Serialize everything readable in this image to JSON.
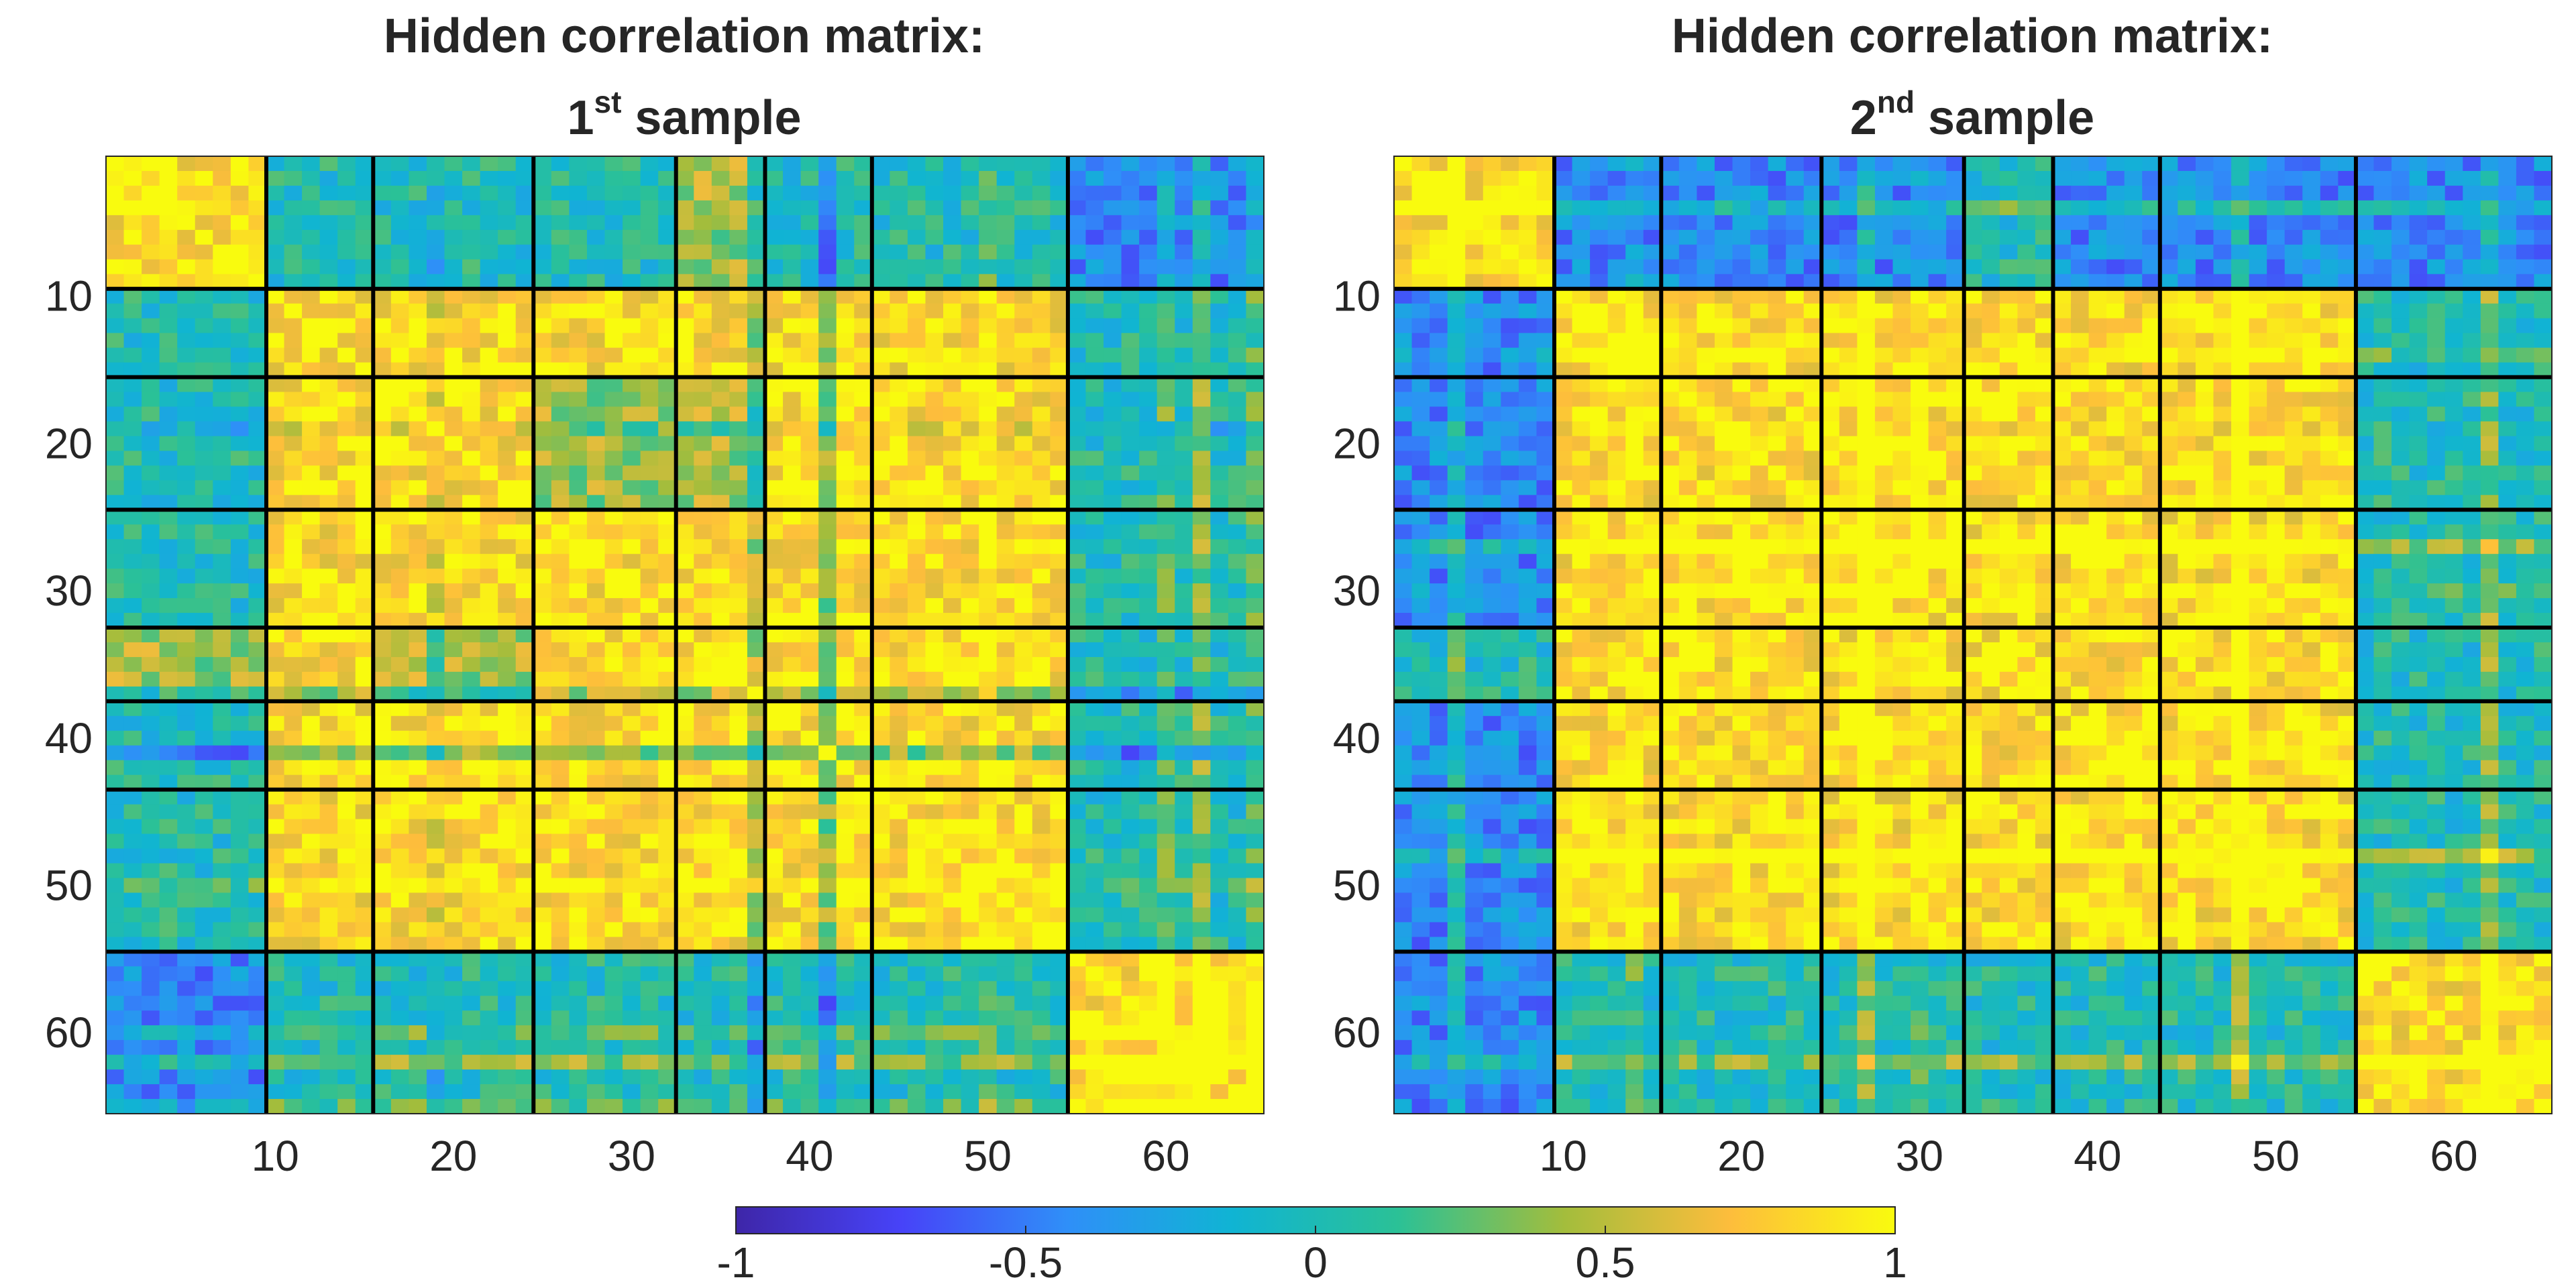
{
  "chart_data": [
    {
      "type": "heatmap",
      "title_line1": "Hidden correlation matrix:",
      "title_num": "1",
      "title_sup": "st",
      "title_rest": " sample",
      "n": 65,
      "block_ends": [
        9,
        15,
        24,
        32,
        37,
        43,
        54,
        65
      ],
      "block_pattern": [
        [
          1,
          0,
          0,
          0,
          0.5,
          0,
          0,
          -0.5
        ],
        [
          0,
          1,
          1,
          1,
          1,
          1,
          1,
          0
        ],
        [
          0,
          1,
          1,
          0.5,
          0.5,
          1,
          1,
          0
        ],
        [
          0,
          1,
          1,
          1,
          1,
          1,
          1,
          0
        ],
        [
          0.5,
          1,
          0.5,
          1,
          1,
          1,
          1,
          0
        ],
        [
          0,
          1,
          1,
          1,
          1,
          1,
          1,
          0
        ],
        [
          0,
          1,
          1,
          1,
          1,
          1,
          1,
          0
        ],
        [
          -0.5,
          0,
          0,
          0,
          0,
          0,
          0,
          1
        ]
      ],
      "xticks": [
        10,
        20,
        30,
        40,
        50,
        60
      ],
      "yticks": [
        10,
        20,
        30,
        40,
        50,
        60
      ],
      "clim": [
        -1,
        1
      ]
    },
    {
      "type": "heatmap",
      "title_line1": "Hidden correlation matrix:",
      "title_num": "2",
      "title_sup": "nd",
      "title_rest": " sample",
      "n": 65,
      "block_ends": [
        9,
        15,
        24,
        32,
        37,
        43,
        54,
        65
      ],
      "block_pattern": [
        [
          1,
          -0.5,
          -0.5,
          -0.5,
          0,
          -0.5,
          -0.5,
          -0.5
        ],
        [
          -0.5,
          1,
          1,
          1,
          1,
          1,
          1,
          0
        ],
        [
          -0.5,
          1,
          1,
          1,
          1,
          1,
          1,
          0
        ],
        [
          -0.5,
          1,
          1,
          1,
          1,
          1,
          1,
          0
        ],
        [
          0,
          1,
          1,
          1,
          1,
          1,
          1,
          0
        ],
        [
          -0.5,
          1,
          1,
          1,
          1,
          1,
          1,
          0
        ],
        [
          -0.5,
          1,
          1,
          1,
          1,
          1,
          1,
          0
        ],
        [
          -0.5,
          0,
          0,
          0,
          0,
          0,
          0,
          1
        ]
      ],
      "xticks": [
        10,
        20,
        30,
        40,
        50,
        60
      ],
      "yticks": [
        10,
        20,
        30,
        40,
        50,
        60
      ],
      "clim": [
        -1,
        1
      ]
    }
  ],
  "colorbar": {
    "colormap": "parula",
    "stops": [
      "#3e26a8",
      "#4743f8",
      "#2f8ff8",
      "#10b4d3",
      "#2bc196",
      "#a3bd3c",
      "#fdbd3c",
      "#f9fb0e"
    ],
    "ticks": [
      "-1",
      "-0.5",
      "0",
      "0.5",
      "1"
    ],
    "tick_values": [
      -1,
      -0.5,
      0,
      0.5,
      1
    ]
  }
}
